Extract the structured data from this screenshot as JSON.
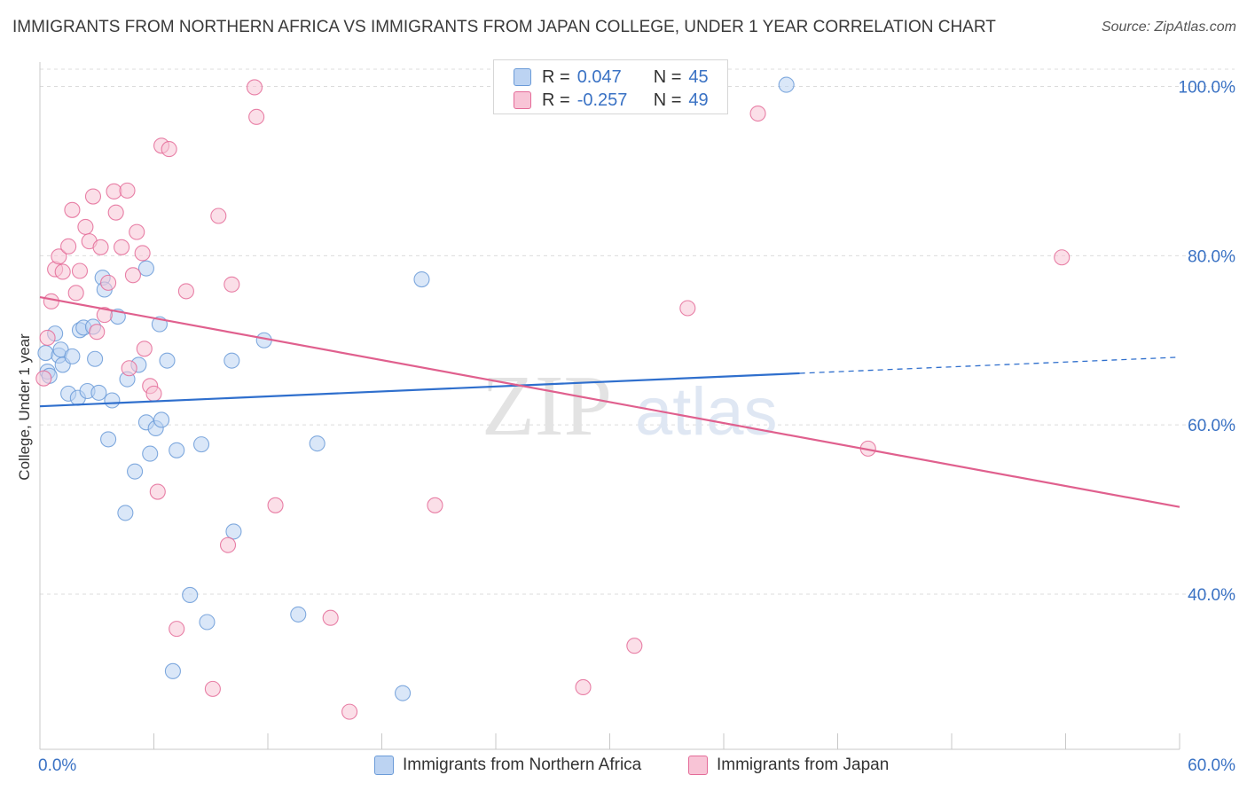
{
  "header": {
    "title": "IMMIGRANTS FROM NORTHERN AFRICA VS IMMIGRANTS FROM JAPAN COLLEGE, UNDER 1 YEAR CORRELATION CHART",
    "source": "Source: ZipAtlas.com"
  },
  "watermark": {
    "zip": "ZIP",
    "atlas": "atlas"
  },
  "legend": {
    "rows": [
      {
        "r_label": "R =",
        "r_value": "0.047",
        "n_label": "N =",
        "n_value": "45"
      },
      {
        "r_label": "R =",
        "r_value": "-0.257",
        "n_label": "N =",
        "n_value": "49"
      }
    ]
  },
  "chart_data": {
    "type": "scatter",
    "title": "IMMIGRANTS FROM NORTHERN AFRICA VS IMMIGRANTS FROM JAPAN COLLEGE, UNDER 1 YEAR CORRELATION CHART",
    "xlabel": "",
    "ylabel": "College, Under 1 year",
    "xlim": [
      0,
      60
    ],
    "ylim": [
      21,
      100
    ],
    "x_tick_labels": [
      "0.0%",
      "60.0%"
    ],
    "y_ticks": [
      {
        "value": 40,
        "label": "40.0%"
      },
      {
        "value": 60,
        "label": "60.0%"
      },
      {
        "value": 80,
        "label": "80.0%"
      },
      {
        "value": 100,
        "label": "100.0%"
      }
    ],
    "grid": true,
    "series": [
      {
        "name": "Immigrants from Northern Africa",
        "color": "#6b9bd8",
        "fill": "#bcd3f2",
        "r": 0.047,
        "n": 45,
        "trend": {
          "x0": 0,
          "y0": 62.2,
          "x1": 40,
          "y1": 66.1,
          "dash_x1": 60,
          "dash_y1": 68.0
        },
        "points": [
          [
            0.3,
            68.5
          ],
          [
            0.4,
            66.3
          ],
          [
            0.5,
            65.8
          ],
          [
            0.8,
            70.8
          ],
          [
            1.0,
            68.2
          ],
          [
            1.1,
            68.9
          ],
          [
            1.2,
            67.1
          ],
          [
            1.5,
            63.7
          ],
          [
            1.7,
            68.1
          ],
          [
            2.0,
            63.2
          ],
          [
            2.1,
            71.2
          ],
          [
            2.3,
            71.5
          ],
          [
            2.5,
            64.0
          ],
          [
            2.8,
            71.6
          ],
          [
            2.9,
            67.8
          ],
          [
            3.1,
            63.8
          ],
          [
            3.3,
            77.4
          ],
          [
            3.4,
            76.0
          ],
          [
            3.6,
            58.3
          ],
          [
            3.8,
            62.9
          ],
          [
            4.1,
            72.8
          ],
          [
            4.5,
            49.6
          ],
          [
            4.6,
            65.4
          ],
          [
            5.0,
            54.5
          ],
          [
            5.2,
            67.1
          ],
          [
            5.6,
            78.5
          ],
          [
            5.6,
            60.3
          ],
          [
            5.8,
            56.6
          ],
          [
            6.1,
            59.6
          ],
          [
            6.3,
            71.9
          ],
          [
            6.4,
            60.6
          ],
          [
            6.7,
            67.6
          ],
          [
            7.0,
            30.9
          ],
          [
            7.2,
            57.0
          ],
          [
            7.9,
            39.9
          ],
          [
            8.5,
            57.7
          ],
          [
            8.8,
            36.7
          ],
          [
            10.1,
            67.6
          ],
          [
            10.2,
            47.4
          ],
          [
            11.8,
            70.0
          ],
          [
            13.6,
            37.6
          ],
          [
            14.6,
            57.8
          ],
          [
            19.1,
            28.3
          ],
          [
            20.1,
            77.2
          ],
          [
            39.3,
            100.2
          ]
        ]
      },
      {
        "name": "Immigrants from Japan",
        "color": "#e46b98",
        "fill": "#f8c4d6",
        "r": -0.257,
        "n": 49,
        "trend": {
          "x0": 0,
          "y0": 75.1,
          "x1": 60,
          "y1": 50.3
        },
        "points": [
          [
            0.2,
            65.5
          ],
          [
            0.4,
            70.3
          ],
          [
            0.6,
            74.6
          ],
          [
            0.8,
            78.4
          ],
          [
            1.0,
            79.9
          ],
          [
            1.2,
            78.1
          ],
          [
            1.5,
            81.1
          ],
          [
            1.7,
            85.4
          ],
          [
            1.9,
            75.6
          ],
          [
            2.1,
            78.2
          ],
          [
            2.4,
            83.4
          ],
          [
            2.6,
            81.7
          ],
          [
            2.8,
            87.0
          ],
          [
            3.0,
            71.0
          ],
          [
            3.2,
            81.0
          ],
          [
            3.4,
            73.0
          ],
          [
            3.6,
            76.8
          ],
          [
            3.9,
            87.6
          ],
          [
            4.0,
            85.1
          ],
          [
            4.3,
            81.0
          ],
          [
            4.6,
            87.7
          ],
          [
            4.7,
            66.7
          ],
          [
            4.9,
            77.7
          ],
          [
            5.1,
            82.8
          ],
          [
            5.4,
            80.3
          ],
          [
            5.5,
            69.0
          ],
          [
            5.8,
            64.6
          ],
          [
            6.0,
            63.7
          ],
          [
            6.2,
            52.1
          ],
          [
            6.4,
            93.0
          ],
          [
            6.8,
            92.6
          ],
          [
            7.2,
            35.9
          ],
          [
            7.7,
            75.8
          ],
          [
            9.1,
            28.8
          ],
          [
            9.4,
            84.7
          ],
          [
            9.9,
            45.8
          ],
          [
            10.1,
            76.6
          ],
          [
            11.3,
            99.9
          ],
          [
            11.4,
            96.4
          ],
          [
            12.4,
            50.5
          ],
          [
            15.3,
            37.2
          ],
          [
            16.3,
            26.1
          ],
          [
            20.8,
            50.5
          ],
          [
            28.6,
            29.0
          ],
          [
            31.3,
            33.9
          ],
          [
            34.1,
            73.8
          ],
          [
            37.8,
            96.8
          ],
          [
            43.6,
            57.2
          ],
          [
            53.8,
            79.8
          ]
        ]
      }
    ]
  }
}
